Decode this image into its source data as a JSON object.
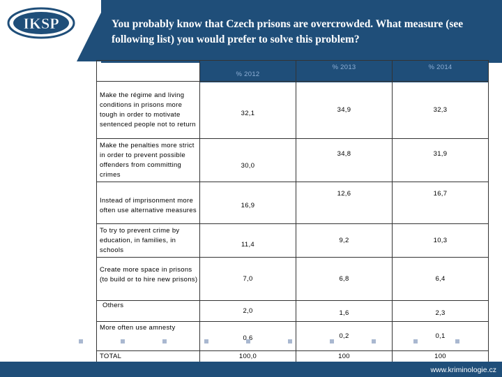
{
  "title": "You probably know that Czech prisons are overcrowded. What measure (see following list) you would prefer to solve this problem?",
  "logo_text": "IKSP",
  "columns": [
    "% 2012",
    "% 2013",
    "% 2014"
  ],
  "rows": [
    {
      "label": "Make the régime and living conditions in prisons more tough in order to motivate sentenced people not to return",
      "values": [
        "32,1",
        "34,9",
        "32,3"
      ]
    },
    {
      "label": "Make the penalties more strict  in order to prevent possible offenders from committing crimes",
      "values": [
        "30,0",
        "34,8",
        "31,9"
      ]
    },
    {
      "label": "Instead of imprisonment more often use alternative measures",
      "values": [
        "16,9",
        "12,6",
        "16,7"
      ]
    },
    {
      "label": "To try to prevent crime by education, in families, in schools",
      "values": [
        "11,4",
        "9,2",
        "10,3"
      ]
    },
    {
      "label": "Create more space in prisons (to build or to hire new prisons)",
      "values": [
        "7,0",
        "6,8",
        "6,4"
      ]
    },
    {
      "label": "Others",
      "values": [
        "2,0",
        "1,6",
        "2,3"
      ]
    },
    {
      "label": "More often use amnesty",
      "values": [
        "0,6",
        "0,2",
        "0,1"
      ]
    },
    {
      "label": "TOTAL",
      "values": [
        "100,0",
        "100",
        "100"
      ]
    }
  ],
  "footer": "www.kriminologie.cz",
  "colors": {
    "brand": "#1f4e79",
    "header_text": "#8fb0d6"
  }
}
